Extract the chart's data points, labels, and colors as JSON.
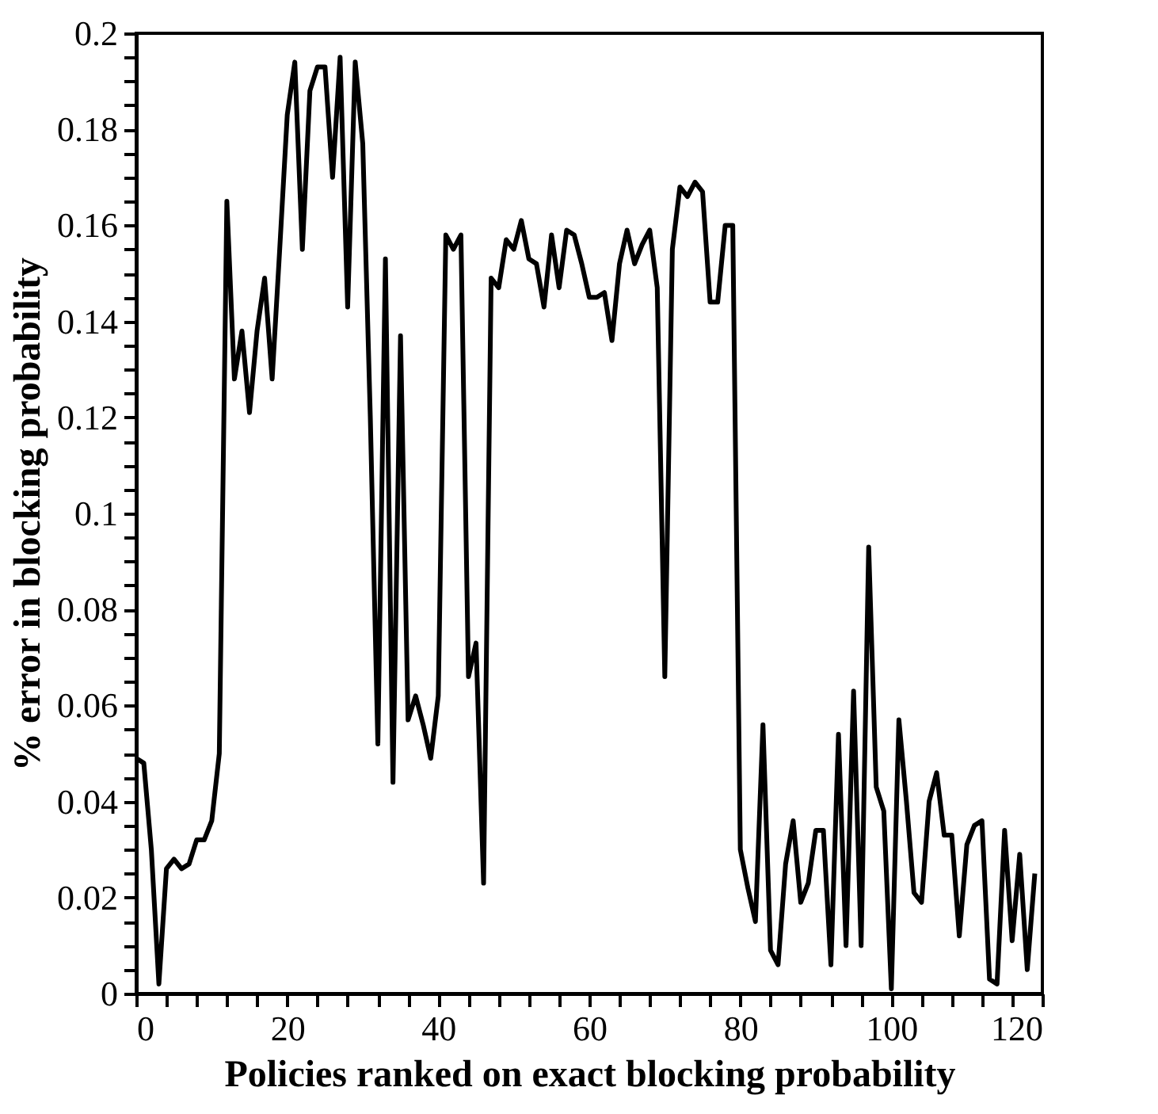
{
  "chart_data": {
    "type": "line",
    "xlabel": "Policies ranked on exact blocking probability",
    "ylabel": "% error in blocking probability",
    "x": [
      0,
      1,
      2,
      3,
      4,
      5,
      6,
      7,
      8,
      9,
      10,
      11,
      12,
      13,
      14,
      15,
      16,
      17,
      18,
      19,
      20,
      21,
      22,
      23,
      24,
      25,
      26,
      27,
      28,
      29,
      30,
      31,
      32,
      33,
      34,
      35,
      36,
      37,
      38,
      39,
      40,
      41,
      42,
      43,
      44,
      45,
      46,
      47,
      48,
      49,
      50,
      51,
      52,
      53,
      54,
      55,
      56,
      57,
      58,
      59,
      60,
      61,
      62,
      63,
      64,
      65,
      66,
      67,
      68,
      69,
      70,
      71,
      72,
      73,
      74,
      75,
      76,
      77,
      78,
      79,
      80,
      81,
      82,
      83,
      84,
      85,
      86,
      87,
      88,
      89,
      90,
      91,
      92,
      93,
      94,
      95,
      96,
      97,
      98,
      99,
      100,
      101,
      102,
      103,
      104,
      105,
      106,
      107,
      108,
      109,
      110,
      111,
      112,
      113,
      114,
      115,
      116,
      117,
      118,
      119
    ],
    "series": [
      {
        "color": "#000000",
        "values": [
          0.049,
          0.048,
          0.03,
          0.002,
          0.026,
          0.028,
          0.026,
          0.027,
          0.032,
          0.032,
          0.036,
          0.05,
          0.165,
          0.128,
          0.138,
          0.121,
          0.138,
          0.149,
          0.128,
          0.155,
          0.183,
          0.194,
          0.155,
          0.188,
          0.193,
          0.193,
          0.17,
          0.195,
          0.143,
          0.194,
          0.177,
          0.12,
          0.052,
          0.153,
          0.044,
          0.137,
          0.057,
          0.062,
          0.056,
          0.049,
          0.062,
          0.158,
          0.155,
          0.158,
          0.066,
          0.073,
          0.023,
          0.149,
          0.147,
          0.157,
          0.155,
          0.161,
          0.153,
          0.152,
          0.143,
          0.158,
          0.147,
          0.159,
          0.158,
          0.152,
          0.145,
          0.145,
          0.146,
          0.136,
          0.152,
          0.159,
          0.152,
          0.156,
          0.159,
          0.147,
          0.066,
          0.155,
          0.168,
          0.166,
          0.169,
          0.167,
          0.144,
          0.144,
          0.16,
          0.16,
          0.03,
          0.022,
          0.015,
          0.056,
          0.009,
          0.006,
          0.027,
          0.036,
          0.019,
          0.023,
          0.034,
          0.034,
          0.006,
          0.054,
          0.01,
          0.063,
          0.01,
          0.093,
          0.043,
          0.038,
          0.001,
          0.057,
          0.04,
          0.021,
          0.019,
          0.04,
          0.046,
          0.033,
          0.033,
          0.012,
          0.031,
          0.035,
          0.036,
          0.003,
          0.002,
          0.034,
          0.011,
          0.029,
          0.005,
          0.025
        ]
      }
    ],
    "xlim": [
      0,
      120
    ],
    "xticks": [
      0,
      {
        "value": 4,
        "label": null
      },
      {
        "value": 8,
        "label": null
      },
      {
        "value": 12,
        "label": null
      },
      {
        "value": 16,
        "label": null
      },
      20,
      {
        "value": 24,
        "label": null
      },
      {
        "value": 28,
        "label": null
      },
      {
        "value": 32,
        "label": null
      },
      {
        "value": 36,
        "label": null
      },
      40,
      {
        "value": 44,
        "label": null
      },
      {
        "value": 48,
        "label": null
      },
      {
        "value": 52,
        "label": null
      },
      {
        "value": 56,
        "label": null
      },
      60,
      {
        "value": 64,
        "label": null
      },
      {
        "value": 68,
        "label": null
      },
      {
        "value": 72,
        "label": null
      },
      {
        "value": 76,
        "label": null
      },
      80,
      {
        "value": 84,
        "label": null
      },
      {
        "value": 88,
        "label": null
      },
      {
        "value": 92,
        "label": null
      },
      {
        "value": 96,
        "label": null
      },
      100,
      {
        "value": 104,
        "label": null
      },
      {
        "value": 108,
        "label": null
      },
      {
        "value": 112,
        "label": null
      },
      {
        "value": 116,
        "label": null
      },
      120
    ],
    "ylim": [
      0,
      0.2
    ],
    "yticks": [
      0,
      {
        "value": 0.005,
        "label": null
      },
      {
        "value": 0.01,
        "label": null
      },
      {
        "value": 0.015,
        "label": null
      },
      0.02,
      {
        "value": 0.025,
        "label": null
      },
      {
        "value": 0.03,
        "label": null
      },
      {
        "value": 0.035,
        "label": null
      },
      0.04,
      {
        "value": 0.045,
        "label": null
      },
      {
        "value": 0.05,
        "label": null
      },
      {
        "value": 0.055,
        "label": null
      },
      0.06,
      {
        "value": 0.065,
        "label": null
      },
      {
        "value": 0.07,
        "label": null
      },
      {
        "value": 0.075,
        "label": null
      },
      0.08,
      {
        "value": 0.085,
        "label": null
      },
      {
        "value": 0.09,
        "label": null
      },
      {
        "value": 0.095,
        "label": null
      },
      0.1,
      {
        "value": 0.105,
        "label": null
      },
      {
        "value": 0.11,
        "label": null
      },
      {
        "value": 0.115,
        "label": null
      },
      0.12,
      {
        "value": 0.125,
        "label": null
      },
      {
        "value": 0.13,
        "label": null
      },
      {
        "value": 0.135,
        "label": null
      },
      0.14,
      {
        "value": 0.145,
        "label": null
      },
      {
        "value": 0.15,
        "label": null
      },
      {
        "value": 0.155,
        "label": null
      },
      0.16,
      {
        "value": 0.165,
        "label": null
      },
      {
        "value": 0.17,
        "label": null
      },
      {
        "value": 0.175,
        "label": null
      },
      0.18,
      {
        "value": 0.185,
        "label": null
      },
      {
        "value": 0.19,
        "label": null
      },
      {
        "value": 0.195,
        "label": null
      },
      0.2
    ],
    "grid": false,
    "marker": "none",
    "line_style": "solid"
  }
}
